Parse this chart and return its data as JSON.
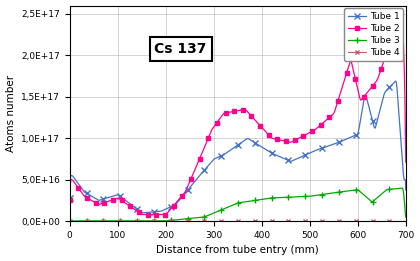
{
  "title": "Cs 137",
  "xlabel": "Distance from tube entry (mm)",
  "ylabel": "Atoms number",
  "xlim": [
    0,
    700
  ],
  "ylim": [
    0,
    2.6e+17
  ],
  "yticks": [
    0,
    5e+16,
    1e+17,
    1.5e+17,
    2e+17,
    2.5e+17
  ],
  "ytick_labels": [
    "0,0E+00",
    "5,0E+16",
    "1,0E+17",
    "1,5E+17",
    "2,0E+17",
    "2,5E+17"
  ],
  "xticks": [
    0,
    100,
    200,
    300,
    400,
    500,
    600,
    700
  ],
  "colors": {
    "tube1": "#4472C4",
    "tube2": "#FF0090",
    "tube3": "#00AA00",
    "tube4": "#C06070"
  },
  "legend": [
    "Tube 1",
    "Tube 2",
    "Tube 3",
    "Tube 4"
  ],
  "background": "#FFFFFF",
  "grid_color": "#AAAAAA"
}
